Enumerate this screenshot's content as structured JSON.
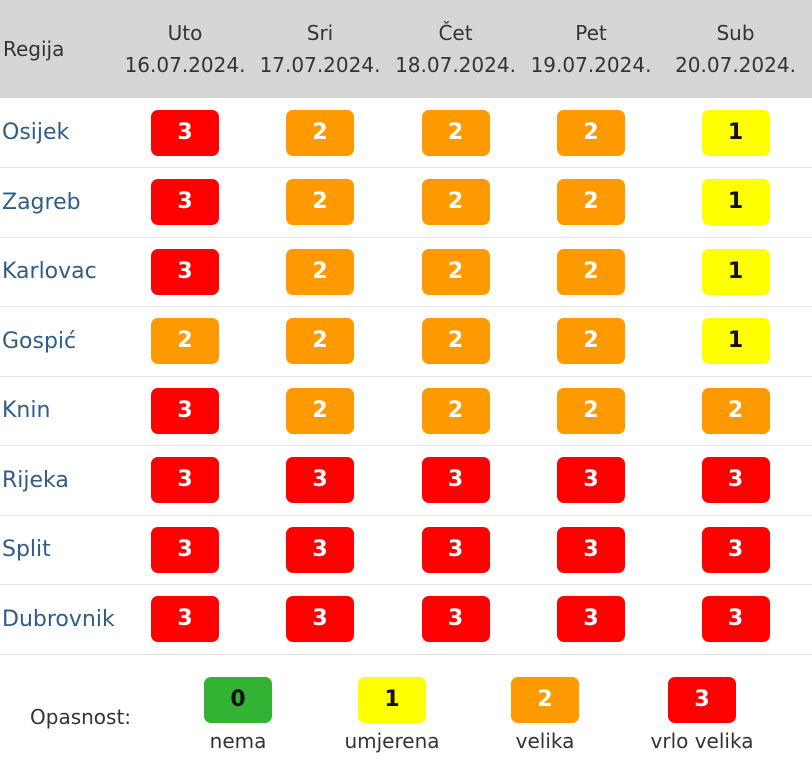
{
  "header": {
    "region_label": "Regija",
    "days": [
      {
        "name": "Uto",
        "date": "16.07.2024."
      },
      {
        "name": "Sri",
        "date": "17.07.2024."
      },
      {
        "name": "Čet",
        "date": "18.07.2024."
      },
      {
        "name": "Pet",
        "date": "19.07.2024."
      },
      {
        "name": "Sub",
        "date": "20.07.2024."
      }
    ]
  },
  "rows": [
    {
      "region": "Osijek",
      "levels": [
        "3",
        "2",
        "2",
        "2",
        "1"
      ]
    },
    {
      "region": "Zagreb",
      "levels": [
        "3",
        "2",
        "2",
        "2",
        "1"
      ]
    },
    {
      "region": "Karlovac",
      "levels": [
        "3",
        "2",
        "2",
        "2",
        "1"
      ]
    },
    {
      "region": "Gospić",
      "levels": [
        "2",
        "2",
        "2",
        "2",
        "1"
      ]
    },
    {
      "region": "Knin",
      "levels": [
        "3",
        "2",
        "2",
        "2",
        "2"
      ]
    },
    {
      "region": "Rijeka",
      "levels": [
        "3",
        "3",
        "3",
        "3",
        "3"
      ]
    },
    {
      "region": "Split",
      "levels": [
        "3",
        "3",
        "3",
        "3",
        "3"
      ]
    },
    {
      "region": "Dubrovnik",
      "levels": [
        "3",
        "3",
        "3",
        "3",
        "3"
      ]
    }
  ],
  "legend": {
    "label": "Opasnost:",
    "items": [
      {
        "level": "0",
        "caption": "nema"
      },
      {
        "level": "1",
        "caption": "umjerena"
      },
      {
        "level": "2",
        "caption": "velika"
      },
      {
        "level": "3",
        "caption": "vrlo velika"
      }
    ]
  },
  "colors": {
    "level_0": "#33b233",
    "level_1": "#ffff00",
    "level_2": "#ff9900",
    "level_3": "#ff0000",
    "header_bg": "#d6d6d6",
    "region_link": "#2f5d86"
  }
}
